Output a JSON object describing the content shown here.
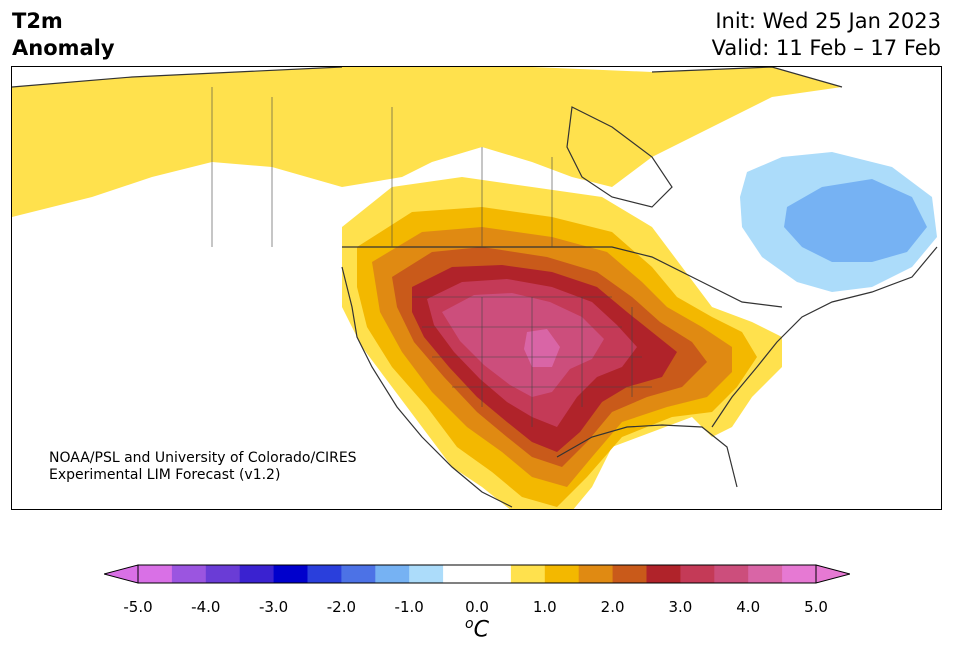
{
  "title": {
    "variable": "T2m",
    "subtitle": "Anomaly"
  },
  "init": "Init: Wed 25 Jan 2023",
  "valid": "Valid: 11 Feb – 17 Feb",
  "credit": {
    "line1": "NOAA/PSL and University of Colorado/CIRES",
    "line2": "Experimental LIM Forecast (v1.2)"
  },
  "colorbar": {
    "unit_base": "C",
    "unit_super": "o",
    "ticks": [
      "-5.0",
      "-4.0",
      "-3.0",
      "-2.0",
      "-1.0",
      "0.0",
      "1.0",
      "2.0",
      "3.0",
      "4.0",
      "5.0"
    ],
    "colors": [
      "#d970e6",
      "#9b55e0",
      "#6a3cd6",
      "#3a22d0",
      "#0000cc",
      "#2a3fdc",
      "#4c72e6",
      "#76b2f3",
      "#acdcfa",
      "#ffffff",
      "#ffffff",
      "#ffe14d",
      "#f3b800",
      "#e08a12",
      "#c95a1a",
      "#b0232a",
      "#c43a57",
      "#cc4e7c",
      "#d965a6",
      "#e679d3"
    ],
    "under_color": "#d970e6",
    "over_color": "#e679d3"
  },
  "map": {
    "region": "North America",
    "variable": "2m temperature anomaly",
    "units": "°C"
  }
}
